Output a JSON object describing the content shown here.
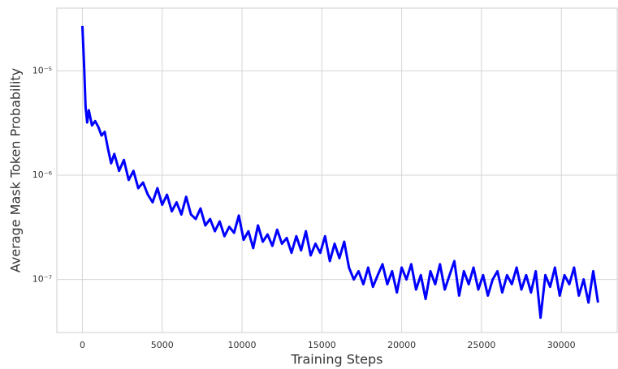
{
  "chart_data": {
    "type": "line",
    "xlabel": "Training Steps",
    "ylabel": "Average Mask Token Probability",
    "log_y": true,
    "grid": true,
    "xlim": [
      -1600,
      33500
    ],
    "ylim": [
      3.1e-08,
      4e-05
    ],
    "xticks": [
      0,
      5000,
      10000,
      15000,
      20000,
      25000,
      30000
    ],
    "yticks": [
      {
        "value": 1e-07,
        "label": "10⁻⁷"
      },
      {
        "value": 1e-06,
        "label": "10⁻⁶"
      },
      {
        "value": 1e-05,
        "label": "10⁻⁵"
      }
    ],
    "x": [
      0,
      100,
      200,
      300,
      400,
      600,
      800,
      1000,
      1200,
      1400,
      1600,
      1800,
      2000,
      2300,
      2600,
      2900,
      3200,
      3500,
      3800,
      4100,
      4400,
      4700,
      5000,
      5300,
      5600,
      5900,
      6200,
      6500,
      6800,
      7100,
      7400,
      7700,
      8000,
      8300,
      8600,
      8900,
      9200,
      9500,
      9800,
      10100,
      10400,
      10700,
      11000,
      11300,
      11600,
      11900,
      12200,
      12500,
      12800,
      13100,
      13400,
      13700,
      14000,
      14300,
      14600,
      14900,
      15200,
      15500,
      15800,
      16100,
      16400,
      16700,
      17000,
      17300,
      17600,
      17900,
      18200,
      18500,
      18800,
      19100,
      19400,
      19700,
      20000,
      20300,
      20600,
      20900,
      21200,
      21500,
      21800,
      22100,
      22400,
      22700,
      23000,
      23300,
      23600,
      23900,
      24200,
      24500,
      24800,
      25100,
      25400,
      25700,
      26000,
      26300,
      26600,
      26900,
      27200,
      27500,
      27800,
      28100,
      28400,
      28700,
      29000,
      29300,
      29600,
      29900,
      30200,
      30500,
      30800,
      31100,
      31400,
      31700,
      32000,
      32300
    ],
    "series": [
      {
        "color": "#0000ff",
        "values": [
          2.7e-05,
          1.2e-05,
          4.5e-06,
          3.2e-06,
          4.2e-06,
          3e-06,
          3.3e-06,
          2.9e-06,
          2.4e-06,
          2.6e-06,
          1.8e-06,
          1.3e-06,
          1.6e-06,
          1.1e-06,
          1.4e-06,
          9e-07,
          1.1e-06,
          7.5e-07,
          8.5e-07,
          6.5e-07,
          5.5e-07,
          7.5e-07,
          5.2e-07,
          6.5e-07,
          4.5e-07,
          5.5e-07,
          4.2e-07,
          6.2e-07,
          4.2e-07,
          3.8e-07,
          4.8e-07,
          3.3e-07,
          3.8e-07,
          2.9e-07,
          3.6e-07,
          2.6e-07,
          3.2e-07,
          2.8e-07,
          4.1e-07,
          2.4e-07,
          2.9e-07,
          2e-07,
          3.3e-07,
          2.3e-07,
          2.7e-07,
          2.1e-07,
          3e-07,
          2.2e-07,
          2.5e-07,
          1.8e-07,
          2.6e-07,
          1.9e-07,
          2.9e-07,
          1.7e-07,
          2.2e-07,
          1.8e-07,
          2.6e-07,
          1.5e-07,
          2.2e-07,
          1.6e-07,
          2.3e-07,
          1.3e-07,
          1e-07,
          1.2e-07,
          9e-08,
          1.3e-07,
          8.5e-08,
          1.1e-07,
          1.4e-07,
          9e-08,
          1.2e-07,
          7.5e-08,
          1.3e-07,
          1e-07,
          1.4e-07,
          8e-08,
          1.1e-07,
          6.5e-08,
          1.2e-07,
          9e-08,
          1.4e-07,
          8e-08,
          1.1e-07,
          1.5e-07,
          7e-08,
          1.2e-07,
          9e-08,
          1.3e-07,
          8e-08,
          1.1e-07,
          7e-08,
          1e-07,
          1.2e-07,
          7.5e-08,
          1.1e-07,
          9e-08,
          1.3e-07,
          8e-08,
          1.1e-07,
          7.5e-08,
          1.2e-07,
          4.3e-08,
          1.1e-07,
          8.5e-08,
          1.3e-07,
          7e-08,
          1.1e-07,
          9e-08,
          1.3e-07,
          7e-08,
          1e-07,
          6e-08,
          1.2e-07,
          6e-08
        ]
      }
    ]
  }
}
